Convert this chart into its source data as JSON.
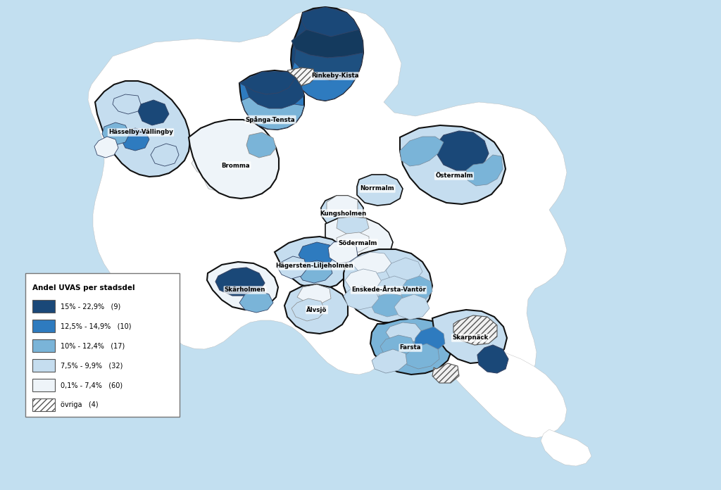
{
  "legend_title": "Andel UVAS per stadsdel",
  "legend_items": [
    {
      "label": "15% - 22,9%",
      "count": "(9)",
      "color": "#1a4878"
    },
    {
      "label": "12,5% - 14,9%",
      "count": "(10)",
      "color": "#2e7bbf"
    },
    {
      "label": "10% - 12,4%",
      "count": "(17)",
      "color": "#7ab4d8"
    },
    {
      "label": "7,5% - 9,9%",
      "count": "(32)",
      "color": "#c5ddef"
    },
    {
      "label": "0,1% - 7,4%",
      "count": "(60)",
      "color": "#eef4f9"
    },
    {
      "label": "övriga",
      "count": "(4)",
      "color": "hatch"
    }
  ],
  "colors": {
    "darkest": "#1a4878",
    "dark": "#2e7bbf",
    "medium": "#7ab4d8",
    "light": "#c5ddef",
    "lightest": "#eef4f9",
    "water": "#c2dff0",
    "bg": "#ffffff"
  },
  "figsize": [
    10.24,
    6.96
  ],
  "dpi": 100
}
